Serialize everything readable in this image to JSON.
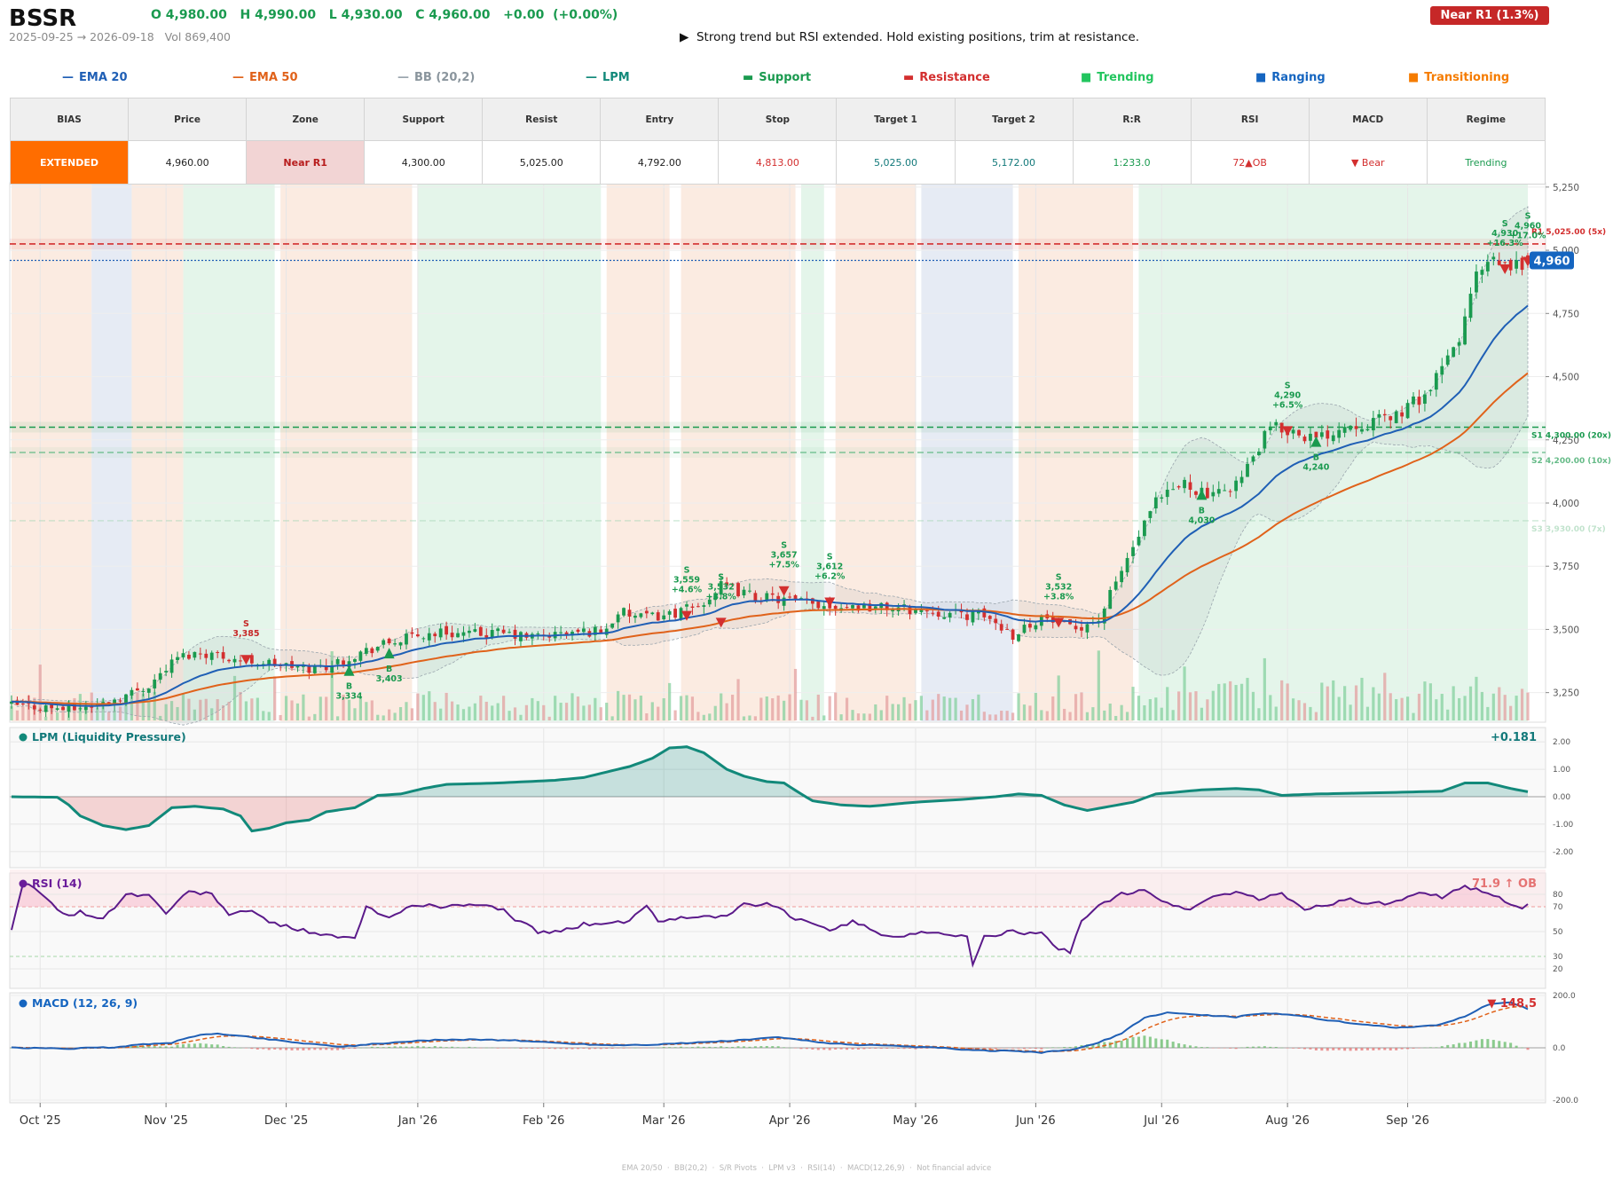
{
  "header": {
    "ticker": "BSSR",
    "ohlc": "O 4,980.00   H 4,990.00   L 4,930.00   C 4,960.00   +0.00  (+0.00%)",
    "date_range": "2025-09-25 → 2026-09-18   Vol 869,400",
    "commentary": "▶  Strong trend but RSI extended. Hold existing positions, trim at resistance.",
    "zone_badge": "Near R1  (1.3%)"
  },
  "legend": [
    {
      "label": "EMA 20",
      "color": "#1f5fb5",
      "marker": "line"
    },
    {
      "label": "EMA 50",
      "color": "#e0621a",
      "marker": "line"
    },
    {
      "label": "BB (20,2)",
      "color": "#9aa5ad",
      "marker": "line"
    },
    {
      "label": "LPM",
      "color": "#12897a",
      "marker": "line"
    },
    {
      "label": "Support",
      "color": "#1a9a4f",
      "marker": "dash"
    },
    {
      "label": "Resistance",
      "color": "#d32f2f",
      "marker": "dash"
    },
    {
      "label": "Trending",
      "color": "#22c55e",
      "marker": "square"
    },
    {
      "label": "Ranging",
      "color": "#1565c0",
      "marker": "square"
    },
    {
      "label": "Transitioning",
      "color": "#f57c00",
      "marker": "square"
    }
  ],
  "stats": {
    "headers": [
      "BIAS",
      "Price",
      "Zone",
      "Support",
      "Resist",
      "Entry",
      "Stop",
      "Target 1",
      "Target 2",
      "R:R",
      "RSI",
      "MACD",
      "Regime"
    ],
    "values": [
      "EXTENDED",
      "4,960.00",
      "Near R1",
      "4,300.00",
      "5,025.00",
      "4,792.00",
      "4,813.00",
      "5,025.00",
      "5,172.00",
      "1:233.0",
      "72▲OB",
      "▼ Bear",
      "Trending"
    ],
    "value_colors": [
      "#ffffff",
      "#222222",
      "#b71c1c",
      "#222222",
      "#222222",
      "#222222",
      "#d32f2f",
      "#12797a",
      "#12797a",
      "#1a9a4f",
      "#d32f2f",
      "#d32f2f",
      "#1a9a4f"
    ],
    "value_bgs": [
      "#ff6d00",
      "#ffffff",
      "#f2d4d4",
      "#ffffff",
      "#ffffff",
      "#ffffff",
      "#ffffff",
      "#ffffff",
      "#ffffff",
      "#ffffff",
      "#ffffff",
      "#ffffff",
      "#ffffff"
    ]
  },
  "chart_data": {
    "type": "candlestick",
    "x_ticks": [
      "Oct '25",
      "Nov '25",
      "Dec '25",
      "Jan '26",
      "Feb '26",
      "Mar '26",
      "Apr '26",
      "May '26",
      "Jun '26",
      "Jul '26",
      "Aug '26",
      "Sep '26"
    ],
    "price_axis": {
      "ticks": [
        "5,250",
        "5,000",
        "4,750",
        "4,500",
        "4,250",
        "4,000",
        "3,750",
        "3,500",
        "3,250"
      ],
      "ylim": [
        3140,
        5260
      ]
    },
    "last_price": "4,960",
    "price_keypoints": [
      [
        0,
        3200
      ],
      [
        5,
        3195
      ],
      [
        10,
        3185
      ],
      [
        15,
        3200
      ],
      [
        20,
        3240
      ],
      [
        24,
        3280
      ],
      [
        29,
        3390
      ],
      [
        33,
        3410
      ],
      [
        36,
        3400
      ],
      [
        40,
        3380
      ],
      [
        44,
        3370
      ],
      [
        48,
        3355
      ],
      [
        52,
        3345
      ],
      [
        56,
        3360
      ],
      [
        60,
        3400
      ],
      [
        65,
        3440
      ],
      [
        70,
        3470
      ],
      [
        75,
        3490
      ],
      [
        80,
        3480
      ],
      [
        85,
        3485
      ],
      [
        90,
        3470
      ],
      [
        95,
        3480
      ],
      [
        100,
        3490
      ],
      [
        104,
        3500
      ],
      [
        106,
        3570
      ],
      [
        110,
        3545
      ],
      [
        115,
        3560
      ],
      [
        120,
        3590
      ],
      [
        124,
        3670
      ],
      [
        127,
        3650
      ],
      [
        130,
        3630
      ],
      [
        134,
        3620
      ],
      [
        140,
        3600
      ],
      [
        150,
        3590
      ],
      [
        160,
        3575
      ],
      [
        165,
        3560
      ],
      [
        170,
        3555
      ],
      [
        175,
        3480
      ],
      [
        180,
        3550
      ],
      [
        185,
        3500
      ],
      [
        190,
        3540
      ],
      [
        195,
        3780
      ],
      [
        200,
        4000
      ],
      [
        205,
        4080
      ],
      [
        210,
        4020
      ],
      [
        215,
        4100
      ],
      [
        220,
        4300
      ],
      [
        225,
        4280
      ],
      [
        228,
        4250
      ],
      [
        233,
        4310
      ],
      [
        238,
        4320
      ],
      [
        243,
        4360
      ],
      [
        248,
        4450
      ],
      [
        253,
        4650
      ],
      [
        256,
        4900
      ],
      [
        259,
        4950
      ],
      [
        262,
        4930
      ],
      [
        265,
        4960
      ]
    ],
    "support_resistance": [
      {
        "label": "R1 5,025.00 (5x)",
        "price": 5025,
        "color": "#d32f2f",
        "style": "dash"
      },
      {
        "label": "S1 4,300.00 (20x)",
        "price": 4300,
        "color": "#1a9a4f",
        "style": "dash"
      },
      {
        "label": "S2 4,200.00 (10x)",
        "price": 4200,
        "color": "#66bb88",
        "style": "dash"
      },
      {
        "label": "S3 3,930.00 (7x)",
        "price": 3930,
        "color": "#a8d8b8",
        "style": "dash"
      }
    ],
    "regime_segments": [
      {
        "regime": "Transitioning",
        "from": 0,
        "to": 14
      },
      {
        "regime": "Ranging",
        "from": 14,
        "to": 21
      },
      {
        "regime": "Transitioning",
        "from": 21,
        "to": 30
      },
      {
        "regime": "Trending",
        "from": 30,
        "to": 46
      },
      {
        "regime": "Transitioning",
        "from": 47,
        "to": 70
      },
      {
        "regime": "Trending",
        "from": 71,
        "to": 103
      },
      {
        "regime": "Transitioning",
        "from": 104,
        "to": 115
      },
      {
        "regime": "Transitioning",
        "from": 117,
        "to": 137
      },
      {
        "regime": "Trending",
        "from": 138,
        "to": 142
      },
      {
        "regime": "Transitioning",
        "from": 144,
        "to": 158
      },
      {
        "regime": "Ranging",
        "from": 159,
        "to": 175
      },
      {
        "regime": "Transitioning",
        "from": 176,
        "to": 196
      },
      {
        "regime": "Trending",
        "from": 197,
        "to": 265
      }
    ],
    "signals": [
      {
        "type": "S",
        "price": "3,385",
        "pct": "",
        "i": 41,
        "y": 3385
      },
      {
        "type": "B",
        "price": "3,334",
        "pct": "",
        "i": 59,
        "y": 3334
      },
      {
        "type": "B",
        "price": "3,403",
        "pct": "",
        "i": 66,
        "y": 3403
      },
      {
        "type": "S",
        "price": "3,559",
        "pct": "+4.6%",
        "i": 118,
        "y": 3559
      },
      {
        "type": "S",
        "price": "3,532",
        "pct": "+3.8%",
        "i": 124,
        "y": 3532
      },
      {
        "type": "S",
        "price": "3,657",
        "pct": "+7.5%",
        "i": 135,
        "y": 3657
      },
      {
        "type": "S",
        "price": "3,612",
        "pct": "+6.2%",
        "i": 143,
        "y": 3612
      },
      {
        "type": "S",
        "price": "3,532",
        "pct": "+3.8%",
        "i": 183,
        "y": 3532
      },
      {
        "type": "B",
        "price": "4,030",
        "pct": "",
        "i": 208,
        "y": 4030
      },
      {
        "type": "S",
        "price": "4,290",
        "pct": "+6.5%",
        "i": 223,
        "y": 4290
      },
      {
        "type": "B",
        "price": "4,240",
        "pct": "",
        "i": 228,
        "y": 4240
      },
      {
        "type": "S",
        "price": "4,930",
        "pct": "+16.3%",
        "i": 261,
        "y": 4930
      },
      {
        "type": "S",
        "price": "4,960",
        "pct": "+17.0%",
        "i": 265,
        "y": 4960
      }
    ],
    "lpm": {
      "title": "LPM (Liquidity Pressure)",
      "last": "+0.181",
      "ticks": [
        "2.00",
        "1.00",
        "0.00",
        "-1.00",
        "-2.00"
      ],
      "keypoints": [
        [
          0,
          0
        ],
        [
          8,
          -0.02
        ],
        [
          10,
          -0.3
        ],
        [
          12,
          -0.7
        ],
        [
          16,
          -1.05
        ],
        [
          20,
          -1.2
        ],
        [
          24,
          -1.05
        ],
        [
          28,
          -0.4
        ],
        [
          32,
          -0.35
        ],
        [
          37,
          -0.45
        ],
        [
          40,
          -0.7
        ],
        [
          42,
          -1.25
        ],
        [
          45,
          -1.15
        ],
        [
          48,
          -0.95
        ],
        [
          52,
          -0.85
        ],
        [
          55,
          -0.55
        ],
        [
          60,
          -0.4
        ],
        [
          64,
          0.05
        ],
        [
          68,
          0.1
        ],
        [
          72,
          0.3
        ],
        [
          76,
          0.45
        ],
        [
          85,
          0.5
        ],
        [
          95,
          0.6
        ],
        [
          100,
          0.7
        ],
        [
          104,
          0.9
        ],
        [
          108,
          1.1
        ],
        [
          112,
          1.4
        ],
        [
          115,
          1.78
        ],
        [
          118,
          1.82
        ],
        [
          121,
          1.6
        ],
        [
          125,
          1.0
        ],
        [
          128,
          0.75
        ],
        [
          132,
          0.55
        ],
        [
          135,
          0.5
        ],
        [
          138,
          0.1
        ],
        [
          140,
          -0.15
        ],
        [
          145,
          -0.3
        ],
        [
          150,
          -0.35
        ],
        [
          158,
          -0.2
        ],
        [
          166,
          -0.1
        ],
        [
          172,
          0.0
        ],
        [
          176,
          0.1
        ],
        [
          180,
          0.05
        ],
        [
          184,
          -0.3
        ],
        [
          188,
          -0.5
        ],
        [
          192,
          -0.35
        ],
        [
          196,
          -0.2
        ],
        [
          200,
          0.1
        ],
        [
          208,
          0.25
        ],
        [
          214,
          0.3
        ],
        [
          218,
          0.25
        ],
        [
          222,
          0.05
        ],
        [
          228,
          0.1
        ],
        [
          240,
          0.15
        ],
        [
          250,
          0.2
        ],
        [
          254,
          0.5
        ],
        [
          258,
          0.5
        ],
        [
          262,
          0.3
        ],
        [
          265,
          0.18
        ]
      ]
    },
    "rsi": {
      "title": "RSI (14)",
      "last": "71.9 ↑ OB",
      "ticks": [
        "80",
        "70",
        "50",
        "30",
        "20"
      ],
      "keypoints": [
        [
          0,
          50
        ],
        [
          2,
          88
        ],
        [
          4,
          86
        ],
        [
          8,
          68
        ],
        [
          10,
          62
        ],
        [
          12,
          66
        ],
        [
          16,
          60
        ],
        [
          20,
          80
        ],
        [
          24,
          79
        ],
        [
          27,
          65
        ],
        [
          31,
          82
        ],
        [
          35,
          80
        ],
        [
          38,
          64
        ],
        [
          42,
          66
        ],
        [
          46,
          56
        ],
        [
          50,
          52
        ],
        [
          56,
          46
        ],
        [
          60,
          44
        ],
        [
          62,
          70
        ],
        [
          66,
          60
        ],
        [
          70,
          72
        ],
        [
          76,
          70
        ],
        [
          80,
          72
        ],
        [
          86,
          68
        ],
        [
          88,
          60
        ],
        [
          92,
          50
        ],
        [
          96,
          50
        ],
        [
          100,
          56
        ],
        [
          104,
          56
        ],
        [
          108,
          58
        ],
        [
          111,
          72
        ],
        [
          113,
          58
        ],
        [
          117,
          62
        ],
        [
          125,
          62
        ],
        [
          128,
          72
        ],
        [
          133,
          72
        ],
        [
          137,
          60
        ],
        [
          140,
          56
        ],
        [
          143,
          52
        ],
        [
          147,
          58
        ],
        [
          152,
          48
        ],
        [
          156,
          46
        ],
        [
          160,
          50
        ],
        [
          164,
          48
        ],
        [
          167,
          46
        ],
        [
          168,
          22
        ],
        [
          170,
          46
        ],
        [
          175,
          50
        ],
        [
          180,
          48
        ],
        [
          183,
          36
        ],
        [
          185,
          34
        ],
        [
          187,
          60
        ],
        [
          190,
          70
        ],
        [
          194,
          80
        ],
        [
          198,
          84
        ],
        [
          202,
          72
        ],
        [
          206,
          68
        ],
        [
          210,
          78
        ],
        [
          214,
          82
        ],
        [
          218,
          76
        ],
        [
          222,
          80
        ],
        [
          226,
          68
        ],
        [
          230,
          72
        ],
        [
          234,
          76
        ],
        [
          238,
          72
        ],
        [
          242,
          74
        ],
        [
          246,
          80
        ],
        [
          250,
          78
        ],
        [
          254,
          86
        ],
        [
          258,
          82
        ],
        [
          262,
          72
        ],
        [
          264,
          70
        ],
        [
          265,
          72
        ]
      ]
    },
    "macd": {
      "title": "MACD (12, 26, 9)",
      "last": "▼ 148.5",
      "ticks": [
        "200.0",
        "0.0",
        "-200.0"
      ],
      "keypoints": [
        [
          0,
          0
        ],
        [
          10,
          -3
        ],
        [
          18,
          2
        ],
        [
          24,
          15
        ],
        [
          28,
          20
        ],
        [
          32,
          45
        ],
        [
          36,
          55
        ],
        [
          40,
          45
        ],
        [
          46,
          30
        ],
        [
          52,
          15
        ],
        [
          58,
          5
        ],
        [
          62,
          12
        ],
        [
          68,
          22
        ],
        [
          74,
          30
        ],
        [
          80,
          32
        ],
        [
          88,
          28
        ],
        [
          96,
          18
        ],
        [
          104,
          10
        ],
        [
          112,
          12
        ],
        [
          120,
          20
        ],
        [
          128,
          30
        ],
        [
          134,
          40
        ],
        [
          138,
          30
        ],
        [
          144,
          15
        ],
        [
          150,
          10
        ],
        [
          156,
          5
        ],
        [
          162,
          0
        ],
        [
          168,
          -10
        ],
        [
          174,
          -12
        ],
        [
          180,
          -18
        ],
        [
          186,
          -5
        ],
        [
          190,
          20
        ],
        [
          194,
          55
        ],
        [
          198,
          115
        ],
        [
          202,
          135
        ],
        [
          208,
          125
        ],
        [
          214,
          118
        ],
        [
          218,
          130
        ],
        [
          222,
          130
        ],
        [
          226,
          120
        ],
        [
          230,
          105
        ],
        [
          234,
          95
        ],
        [
          238,
          85
        ],
        [
          242,
          78
        ],
        [
          246,
          80
        ],
        [
          250,
          90
        ],
        [
          254,
          120
        ],
        [
          258,
          165
        ],
        [
          262,
          175
        ],
        [
          265,
          148
        ]
      ]
    }
  },
  "footer": "EMA 20/50  ·  BB(20,2)  ·  S/R Pivots  ·  LPM v3  ·  RSI(14)  ·  MACD(12,26,9)  ·  Not financial advice"
}
